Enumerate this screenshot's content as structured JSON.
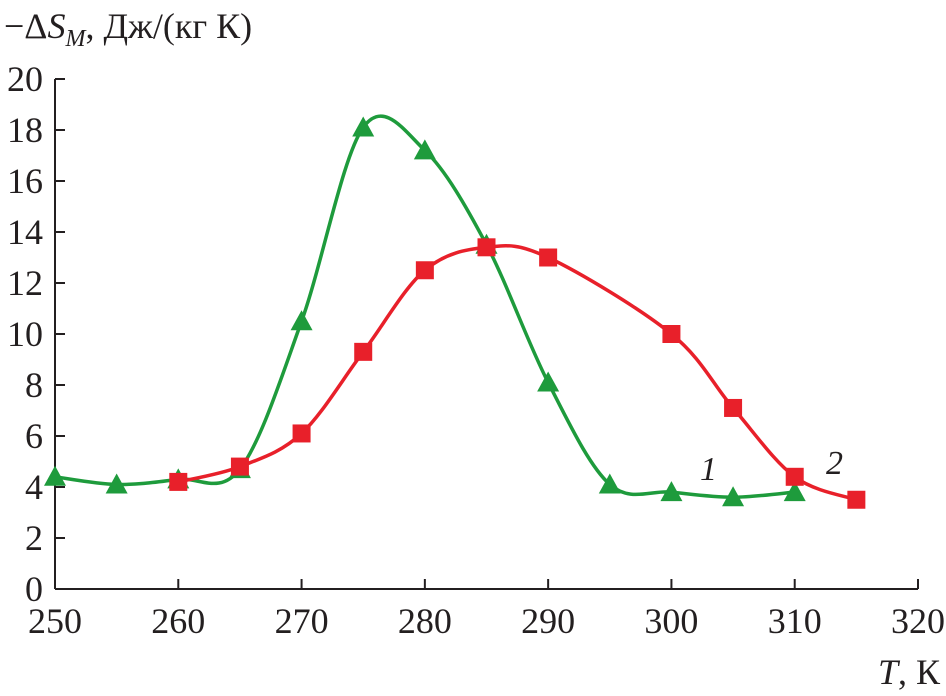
{
  "chart_data": {
    "type": "line",
    "ylabel_prefix": "−Δ",
    "ylabel_symbol": "S",
    "ylabel_subscript": "M",
    "ylabel_units": ", Дж/(кг К)",
    "xlabel_symbol": "T",
    "xlabel_units": ", К",
    "xlim": [
      250,
      320
    ],
    "ylim": [
      0,
      20
    ],
    "xticks": [
      250,
      260,
      270,
      280,
      290,
      300,
      310,
      320
    ],
    "yticks": [
      0,
      2,
      4,
      6,
      8,
      10,
      12,
      14,
      16,
      18,
      20
    ],
    "grid": false,
    "series": [
      {
        "name": "1",
        "marker": "triangle",
        "color": "#1e9b3c",
        "x": [
          250,
          255,
          260,
          265,
          270,
          275,
          280,
          285,
          290,
          295,
          300,
          305,
          310
        ],
        "y": [
          4.4,
          4.1,
          4.3,
          4.7,
          10.5,
          18.1,
          17.2,
          13.5,
          8.1,
          4.1,
          3.8,
          3.6,
          3.8
        ]
      },
      {
        "name": "2",
        "marker": "square",
        "color": "#e8202a",
        "x": [
          260,
          265,
          270,
          275,
          280,
          285,
          290,
          300,
          305,
          310,
          315
        ],
        "y": [
          4.2,
          4.8,
          6.1,
          9.3,
          12.5,
          13.4,
          13.0,
          10.0,
          7.1,
          4.4,
          3.5
        ]
      }
    ]
  }
}
